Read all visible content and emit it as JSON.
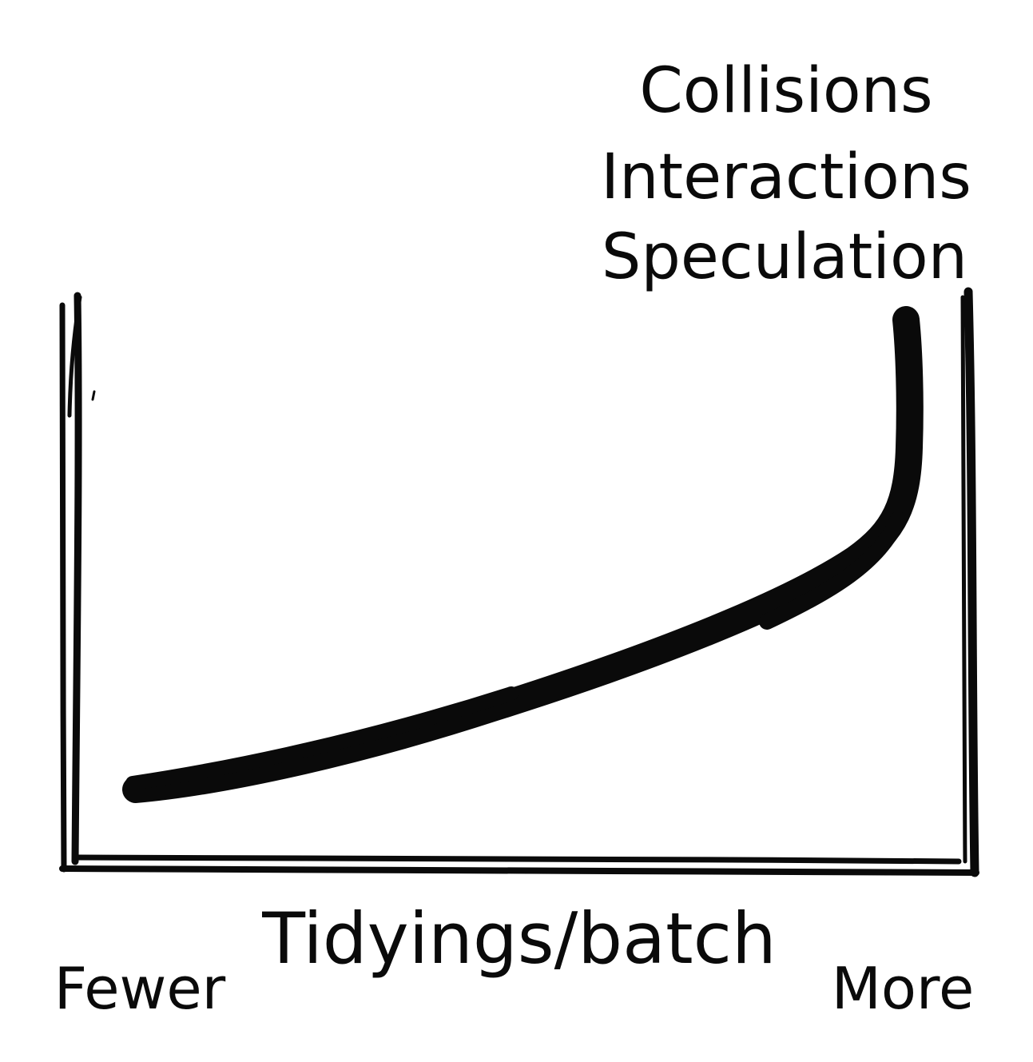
{
  "figure": {
    "curve_labels": [
      "Collisions",
      "Interactions",
      "Speculation"
    ],
    "x_axis_title": "Tidyings/batch",
    "x_min_label": "Fewer",
    "x_max_label": "More",
    "caption": ""
  },
  "colors": {
    "ink": "#0a0a0a",
    "background": "#ffffff"
  }
}
